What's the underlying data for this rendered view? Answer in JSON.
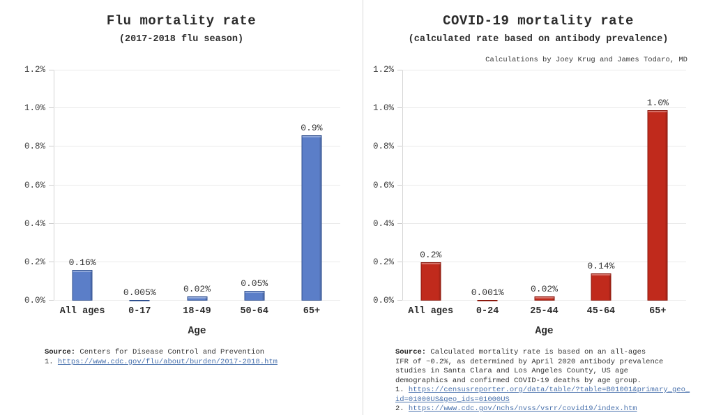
{
  "chart_data": [
    {
      "type": "bar",
      "title": "Flu mortality rate",
      "subtitle": "(2017-2018 flu season)",
      "xlabel": "Age",
      "ylabel": "",
      "ylim": [
        0,
        1.2
      ],
      "grid": true,
      "legend": false,
      "yticks": [
        "0.0%",
        "0.2%",
        "0.4%",
        "0.6%",
        "0.8%",
        "1.0%",
        "1.2%"
      ],
      "categories": [
        "All ages",
        "0-17",
        "18-49",
        "50-64",
        "65+"
      ],
      "values": [
        0.16,
        0.005,
        0.02,
        0.05,
        0.9
      ],
      "plot_values": [
        0.16,
        0.005,
        0.02,
        0.05,
        0.86
      ],
      "labels": [
        "0.16%",
        "0.005%",
        "0.02%",
        "0.05%",
        "0.9%"
      ],
      "bar_fill": "#5b7ec8",
      "bar_border": "#2f4f8e"
    },
    {
      "type": "bar",
      "title": "COVID-19 mortality rate",
      "subtitle": "(calculated rate based on antibody prevalence)",
      "credit": "Calculations by Joey Krug and James Todaro, MD",
      "xlabel": "Age",
      "ylabel": "",
      "ylim": [
        0,
        1.2
      ],
      "grid": true,
      "legend": false,
      "yticks": [
        "0.0%",
        "0.2%",
        "0.4%",
        "0.6%",
        "0.8%",
        "1.0%",
        "1.2%"
      ],
      "categories": [
        "All ages",
        "0-24",
        "25-44",
        "45-64",
        "65+"
      ],
      "values": [
        0.2,
        0.001,
        0.02,
        0.14,
        1.0
      ],
      "plot_values": [
        0.2,
        0.001,
        0.02,
        0.14,
        0.99
      ],
      "labels": [
        "0.2%",
        "0.001%",
        "0.02%",
        "0.14%",
        "1.0%"
      ],
      "bar_fill": "#c02a1c",
      "bar_border": "#8a170c"
    }
  ],
  "sources": {
    "flu": {
      "label": "Source:",
      "body": "Centers for Disease Control and Prevention",
      "ref_num": "1.",
      "ref_url": "https://www.cdc.gov/flu/about/burden/2017-2018.htm"
    },
    "covid": {
      "label": "Source:",
      "body_lines": [
        "Calculated mortality rate is based on an all-ages",
        "IFR of ~0.2%, as determined by April 2020 antibody prevalence",
        "studies in Santa Clara and Los Angeles County, US age",
        "demographics and confirmed COVID-19 deaths by age group."
      ],
      "ref1_num": "1.",
      "ref1_line1": "https://censusreporter.org/data/table/?table=B01001&primary_geo_",
      "ref1_line2": "id=01000US&geo_ids=01000US",
      "ref2_num": "2.",
      "ref2_url": "https://www.cdc.gov/nchs/nvss/vsrr/covid19/index.htm"
    }
  }
}
